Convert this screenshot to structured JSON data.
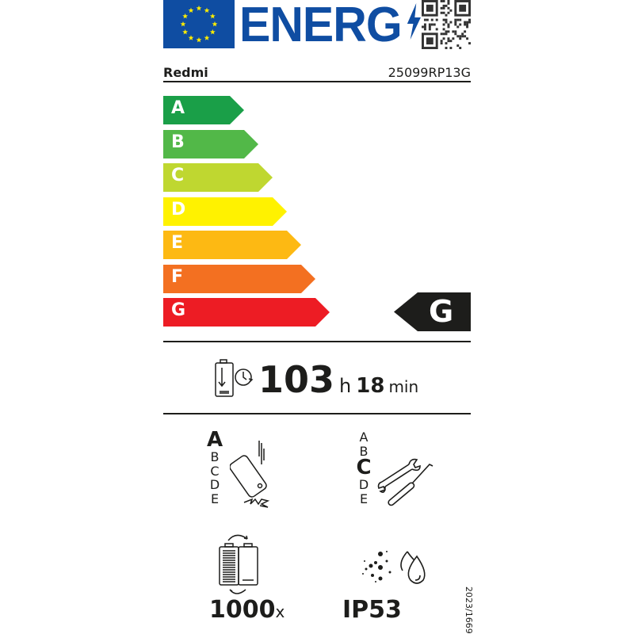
{
  "header": {
    "logo_text": "ENERG",
    "logo_flag": "eu-flag-icon",
    "qr": "qr-code-icon"
  },
  "product": {
    "brand": "Redmi",
    "model": "25099RP13G"
  },
  "energy_scale": {
    "classes": [
      {
        "label": "A",
        "color": "#1a9f48"
      },
      {
        "label": "B",
        "color": "#52b848"
      },
      {
        "label": "C",
        "color": "#bfd730"
      },
      {
        "label": "D",
        "color": "#fff200"
      },
      {
        "label": "E",
        "color": "#fdb913"
      },
      {
        "label": "F",
        "color": "#f37021"
      },
      {
        "label": "G",
        "color": "#ed1c24"
      }
    ],
    "rated_class": "G"
  },
  "battery_endurance": {
    "hours": "103",
    "hours_unit": "h",
    "minutes": "18",
    "minutes_unit": "min"
  },
  "drop_resistance": {
    "scale": [
      "A",
      "B",
      "C",
      "D",
      "E"
    ],
    "rated": "A"
  },
  "repairability": {
    "scale": [
      "A",
      "B",
      "C",
      "D",
      "E"
    ],
    "rated": "C"
  },
  "battery_cycles": {
    "value": "1000",
    "unit": "x"
  },
  "ingress_protection": {
    "value": "IP53"
  },
  "regulation": "2023/1669"
}
